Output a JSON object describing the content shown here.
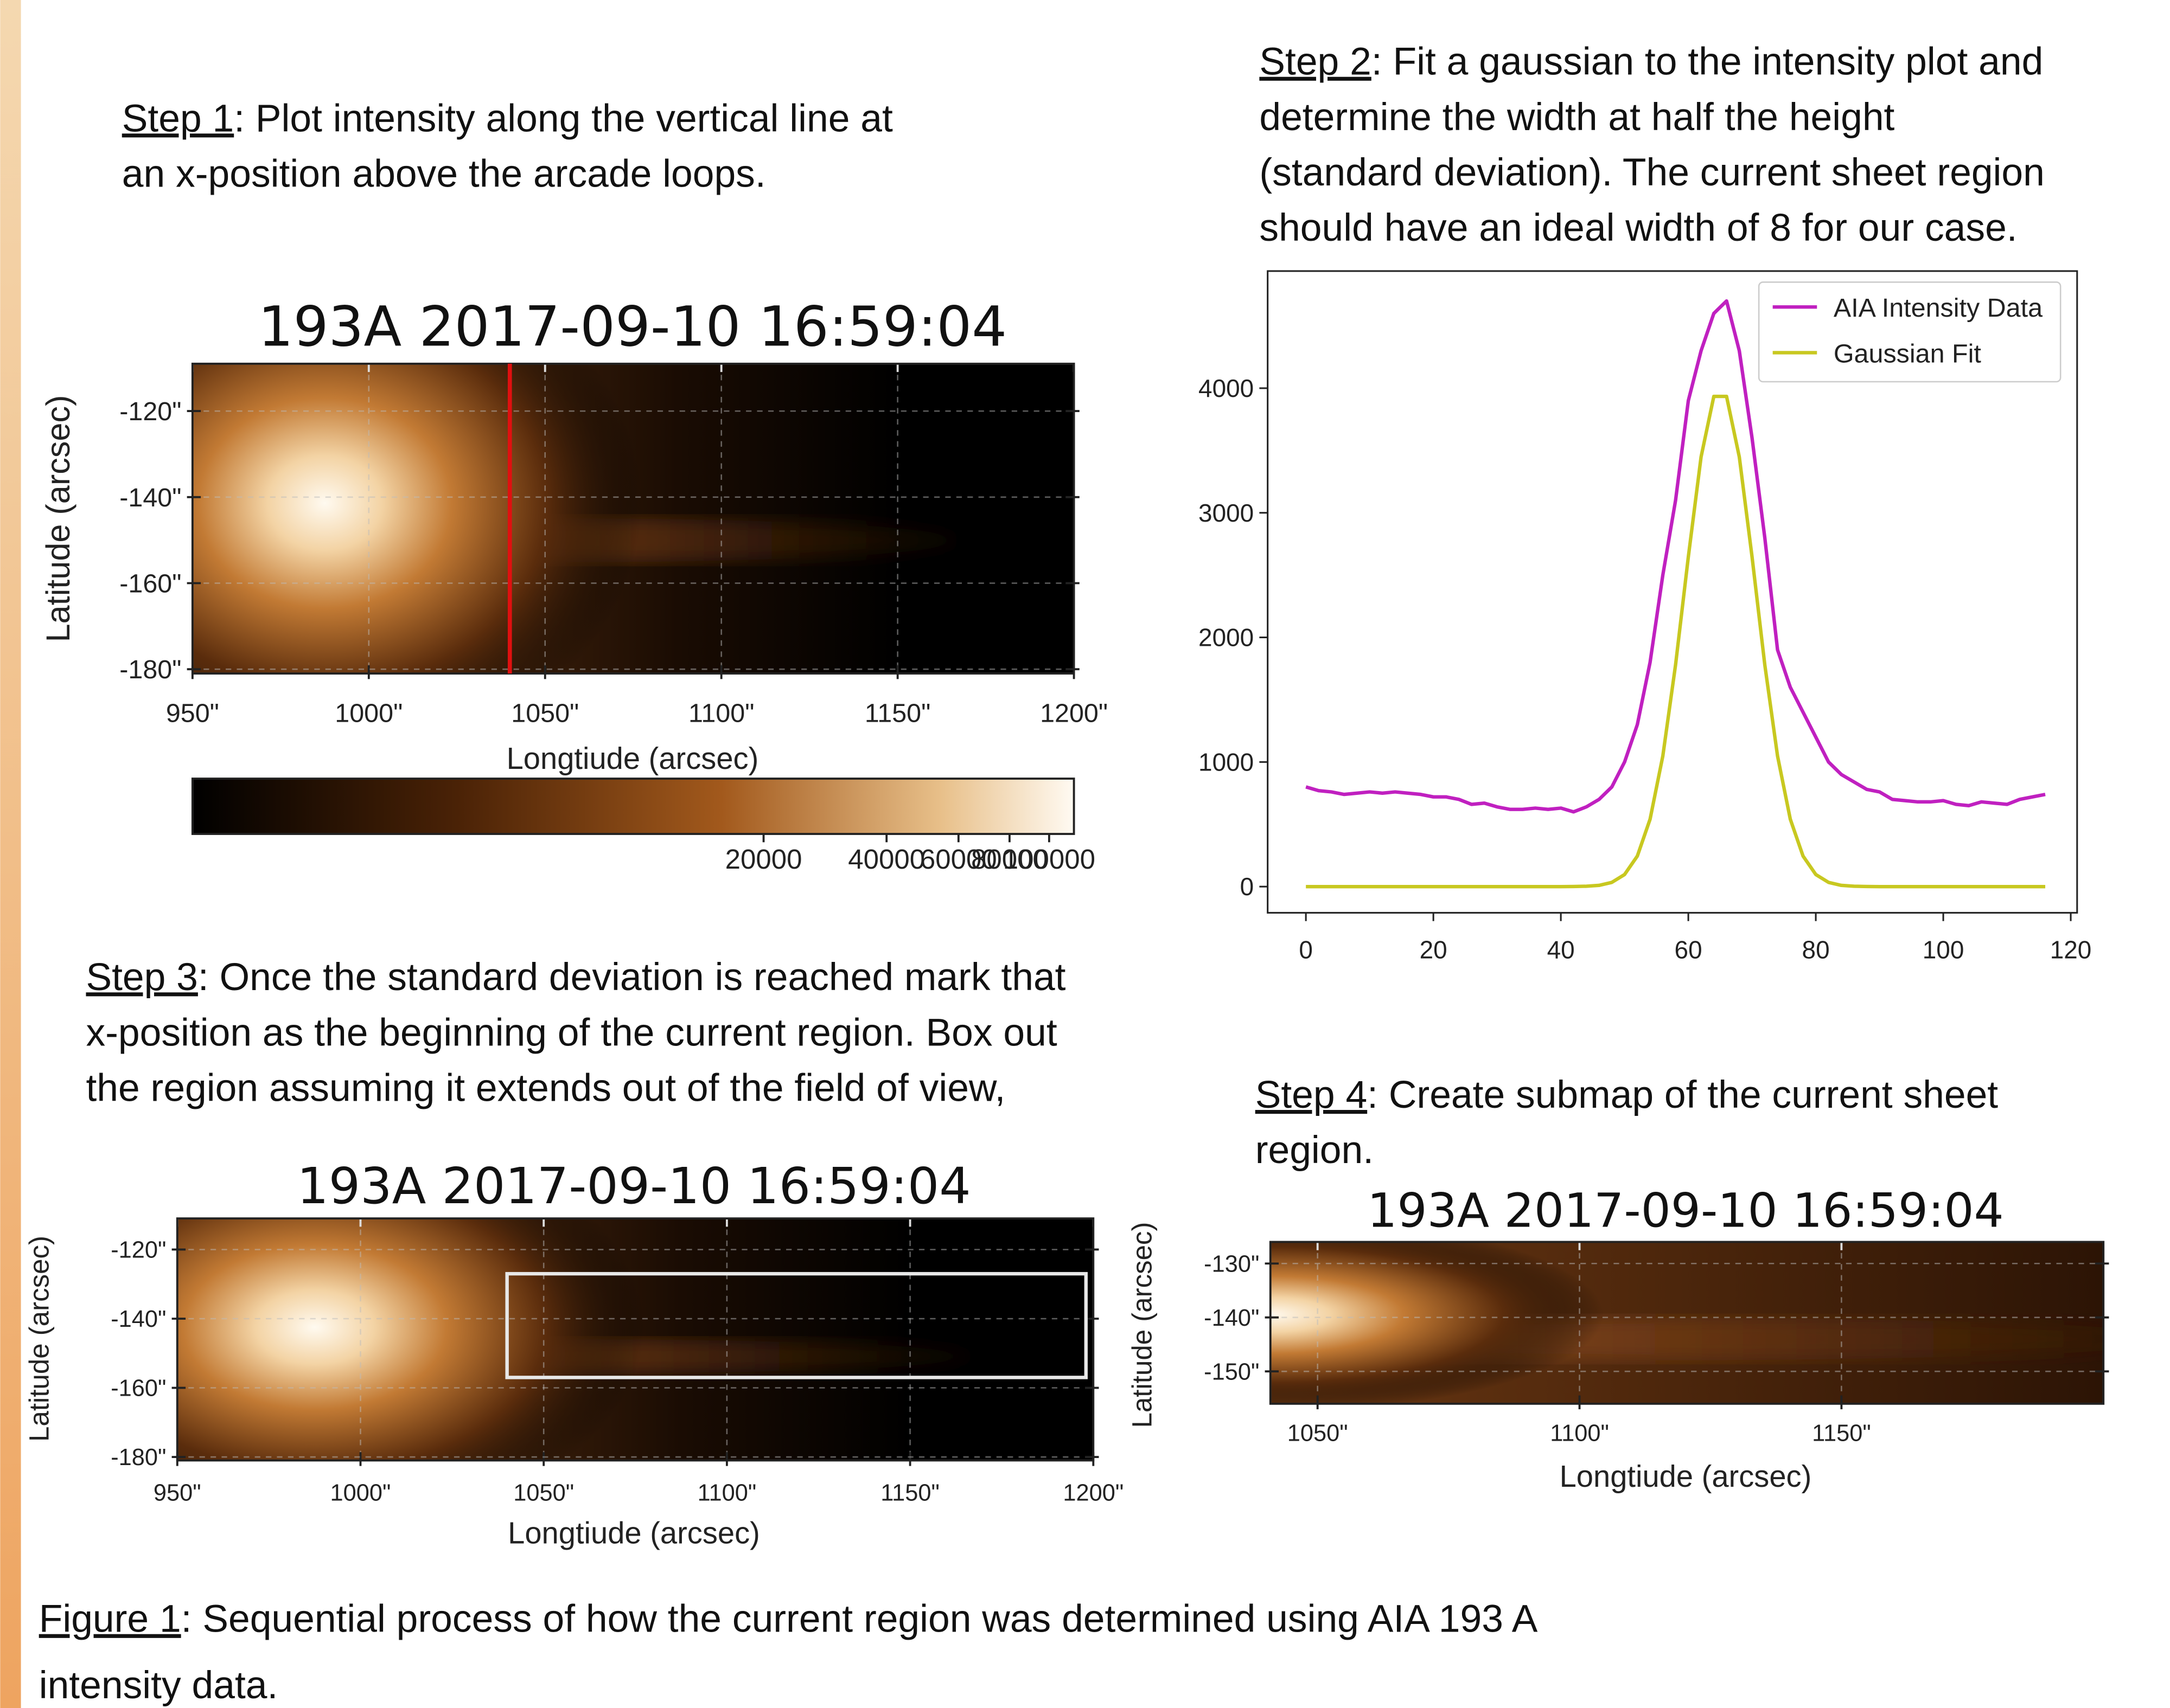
{
  "steps": [
    {
      "label": "Step 1",
      "lines": [
        ": Plot intensity along the vertical line at",
        "an x-position above the arcade loops."
      ]
    },
    {
      "label": "Step 2",
      "lines": [
        ": Fit a gaussian to the intensity plot and",
        "determine the width at half the height",
        "(standard deviation). The current sheet region",
        "should have an ideal width of 8 for our case."
      ]
    },
    {
      "label": "Step 3",
      "lines": [
        ": Once the standard deviation is reached mark that",
        "x-position as the beginning of the current region. Box out",
        "the region assuming it extends out of the field of view,"
      ]
    },
    {
      "label": "Step 4",
      "lines": [
        ": Create submap of the current sheet",
        "region."
      ]
    }
  ],
  "caption": {
    "label": "Figure 1",
    "lines": [
      ": Sequential process of how the current region was determined using AIA 193 A",
      "intensity data."
    ]
  },
  "chart_data": [
    {
      "type": "map",
      "title": "193A 2017-09-10 16:59:04",
      "xlabel": "Longtiude (arcsec)",
      "ylabel": "Latitude (arcsec)",
      "xlim": [
        950,
        1200
      ],
      "ylim": [
        -181,
        -109
      ],
      "xticks": [
        {
          "value": 950,
          "label": "950\""
        },
        {
          "value": 1000,
          "label": "1000\""
        },
        {
          "value": 1050,
          "label": "1050\""
        },
        {
          "value": 1100,
          "label": "1100\""
        },
        {
          "value": 1150,
          "label": "1150\""
        },
        {
          "value": 1200,
          "label": "1200\""
        }
      ],
      "yticks": [
        {
          "value": -120,
          "label": "-120\""
        },
        {
          "value": -140,
          "label": "-140\""
        },
        {
          "value": -160,
          "label": "-160\""
        },
        {
          "value": -180,
          "label": "-180\""
        }
      ],
      "grid": true,
      "vline": {
        "x": 1040,
        "color": "#e01010"
      },
      "colorbar": {
        "scale": "log",
        "lim": [
          800,
          115000
        ],
        "ticks": [
          20000,
          40000,
          60000,
          80000,
          100000
        ]
      }
    },
    {
      "type": "line",
      "xlim": [
        -6,
        121
      ],
      "ylim": [
        -210,
        4940
      ],
      "xticks": [
        0,
        20,
        40,
        60,
        80,
        100,
        120
      ],
      "yticks": [
        0,
        1000,
        2000,
        3000,
        4000
      ],
      "legend": "upper right",
      "x": [
        0,
        2,
        4,
        6,
        8,
        10,
        12,
        14,
        16,
        18,
        20,
        22,
        24,
        26,
        28,
        30,
        32,
        34,
        36,
        38,
        40,
        42,
        44,
        46,
        48,
        50,
        52,
        54,
        56,
        58,
        60,
        62,
        64,
        66,
        68,
        70,
        72,
        74,
        76,
        78,
        80,
        82,
        84,
        86,
        88,
        90,
        92,
        94,
        96,
        98,
        100,
        102,
        104,
        106,
        108,
        110,
        112,
        114,
        116
      ],
      "series": [
        {
          "name": "AIA Intensity Data",
          "color": "#c020c0",
          "values": [
            800,
            770,
            760,
            740,
            750,
            760,
            750,
            760,
            750,
            740,
            720,
            720,
            700,
            660,
            670,
            640,
            620,
            620,
            630,
            620,
            630,
            600,
            640,
            700,
            800,
            1000,
            1300,
            1800,
            2500,
            3100,
            3900,
            4300,
            4600,
            4700,
            4300,
            3600,
            2800,
            1900,
            1600,
            1400,
            1200,
            1000,
            900,
            840,
            780,
            760,
            700,
            690,
            680,
            680,
            690,
            660,
            650,
            680,
            670,
            660,
            700,
            720,
            740
          ]
        },
        {
          "name": "Gaussian Fit",
          "color": "#c8c820",
          "values": [
            0,
            0,
            0,
            0,
            0,
            0,
            0,
            0,
            0,
            0,
            0,
            0,
            0,
            0,
            0,
            0,
            0,
            0,
            0,
            0,
            0,
            1,
            3,
            10,
            34,
            97,
            245,
            541,
            1048,
            1780,
            2646,
            3448,
            3934,
            3934,
            3448,
            2646,
            1780,
            1048,
            541,
            245,
            97,
            34,
            10,
            3,
            1,
            0,
            0,
            0,
            0,
            0,
            0,
            0,
            0,
            0,
            0,
            0,
            0,
            0,
            0
          ]
        }
      ]
    },
    {
      "type": "map",
      "title": "193A 2017-09-10 16:59:04",
      "xlabel": "Longtiude (arcsec)",
      "ylabel": "Latitude (arcsec)",
      "xlim": [
        950,
        1200
      ],
      "ylim": [
        -181,
        -111
      ],
      "xticks": [
        {
          "value": 950,
          "label": "950\""
        },
        {
          "value": 1000,
          "label": "1000\""
        },
        {
          "value": 1050,
          "label": "1050\""
        },
        {
          "value": 1100,
          "label": "1100\""
        },
        {
          "value": 1150,
          "label": "1150\""
        },
        {
          "value": 1200,
          "label": "1200\""
        }
      ],
      "yticks": [
        {
          "value": -120,
          "label": "-120\""
        },
        {
          "value": -140,
          "label": "-140\""
        },
        {
          "value": -160,
          "label": "-160\""
        },
        {
          "value": -180,
          "label": "-180\""
        }
      ],
      "grid": true,
      "box": {
        "x": [
          1040,
          1198
        ],
        "y": [
          -157,
          -127
        ],
        "color": "#e8e8e8"
      }
    },
    {
      "type": "map",
      "submap": true,
      "title": "193A 2017-09-10 16:59:04",
      "xlabel": "Longtiude (arcsec)",
      "ylabel": "Latitude (arcsec)",
      "xlim": [
        1041,
        1200
      ],
      "ylim": [
        -156,
        -126
      ],
      "xticks": [
        {
          "value": 1050,
          "label": "1050\""
        },
        {
          "value": 1100,
          "label": "1100\""
        },
        {
          "value": 1150,
          "label": "1150\""
        }
      ],
      "yticks": [
        {
          "value": -130,
          "label": "-130\""
        },
        {
          "value": -140,
          "label": "-140\""
        },
        {
          "value": -150,
          "label": "-150\""
        }
      ],
      "grid": true
    }
  ]
}
